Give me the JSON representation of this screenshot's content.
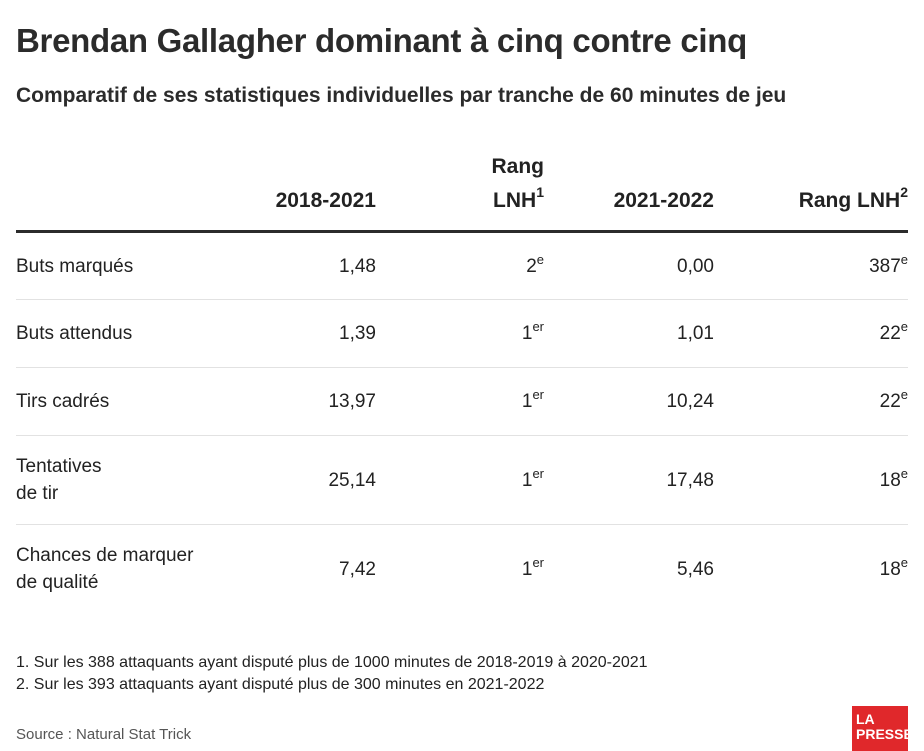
{
  "title": "Brendan Gallagher dominant à cinq contre cinq",
  "subtitle": "Comparatif de ses statistiques individuelles par tranche de 60 minutes de jeu",
  "columns": [
    {
      "label": "2018-2021",
      "sup": ""
    },
    {
      "label_line1": "Rang",
      "label_line2": "LNH",
      "sup": "1"
    },
    {
      "label": "2021-2022",
      "sup": ""
    },
    {
      "label": "Rang LNH",
      "sup": "2"
    }
  ],
  "chart_data": {
    "type": "table",
    "title": "Brendan Gallagher dominant à cinq contre cinq",
    "subtitle": "Comparatif de ses statistiques individuelles par tranche de 60 minutes de jeu",
    "columns": [
      "2018-2021",
      "Rang LNH1",
      "2021-2022",
      "Rang LNH2"
    ],
    "rows": [
      {
        "label_line1": "Buts marqués",
        "label_line2": "",
        "v2018": "1,48",
        "rank1": "2",
        "rank1_sup": "e",
        "v2021": "0,00",
        "rank2": "387",
        "rank2_sup": "e"
      },
      {
        "label_line1": "Buts attendus",
        "label_line2": "",
        "v2018": "1,39",
        "rank1": "1",
        "rank1_sup": "er",
        "v2021": "1,01",
        "rank2": "22",
        "rank2_sup": "e"
      },
      {
        "label_line1": "Tirs cadrés",
        "label_line2": "",
        "v2018": "13,97",
        "rank1": "1",
        "rank1_sup": "er",
        "v2021": "10,24",
        "rank2": "22",
        "rank2_sup": "e"
      },
      {
        "label_line1": "Tentatives",
        "label_line2": "de tir",
        "v2018": "25,14",
        "rank1": "1",
        "rank1_sup": "er",
        "v2021": "17,48",
        "rank2": "18",
        "rank2_sup": "e"
      },
      {
        "label_line1": "Chances de marquer",
        "label_line2": "de qualité",
        "v2018": "7,42",
        "rank1": "1",
        "rank1_sup": "er",
        "v2021": "5,46",
        "rank2": "18",
        "rank2_sup": "e"
      }
    ]
  },
  "notes": [
    "1. Sur les 388 attaquants ayant disputé plus de 1000 minutes de 2018-2019 à 2020-2021",
    "2. Sur les 393 attaquants ayant disputé plus de 300 minutes en 2021-2022"
  ],
  "source": "Source : Natural Stat Trick",
  "logo": {
    "line1": "LA",
    "line2": "PRESSE",
    "color": "#e0282b"
  }
}
